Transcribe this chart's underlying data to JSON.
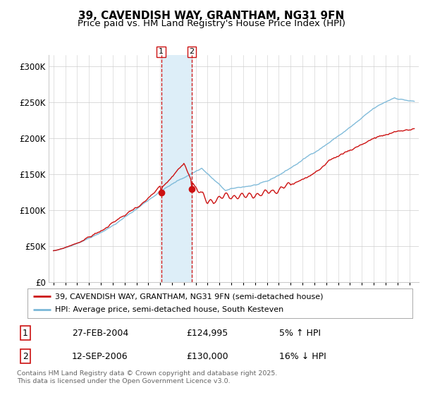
{
  "title": "39, CAVENDISH WAY, GRANTHAM, NG31 9FN",
  "subtitle": "Price paid vs. HM Land Registry's House Price Index (HPI)",
  "ylabel_ticks": [
    "£0",
    "£50K",
    "£100K",
    "£150K",
    "£200K",
    "£250K",
    "£300K"
  ],
  "ytick_values": [
    0,
    50000,
    100000,
    150000,
    200000,
    250000,
    300000
  ],
  "ylim": [
    0,
    315000
  ],
  "sale1_date": "27-FEB-2004",
  "sale1_price": 124995,
  "sale1_hpi_rel": "5% ↑ HPI",
  "sale2_date": "12-SEP-2006",
  "sale2_price": 130000,
  "sale2_hpi_rel": "16% ↓ HPI",
  "sale1_year": 2004.12,
  "sale2_year": 2006.7,
  "legend_line1": "39, CAVENDISH WAY, GRANTHAM, NG31 9FN (semi-detached house)",
  "legend_line2": "HPI: Average price, semi-detached house, South Kesteven",
  "footer": "Contains HM Land Registry data © Crown copyright and database right 2025.\nThis data is licensed under the Open Government Licence v3.0.",
  "hpi_color": "#7ab8d8",
  "price_color": "#cc1111",
  "shade_color": "#ddeef8",
  "background_color": "#ffffff",
  "grid_color": "#cccccc"
}
